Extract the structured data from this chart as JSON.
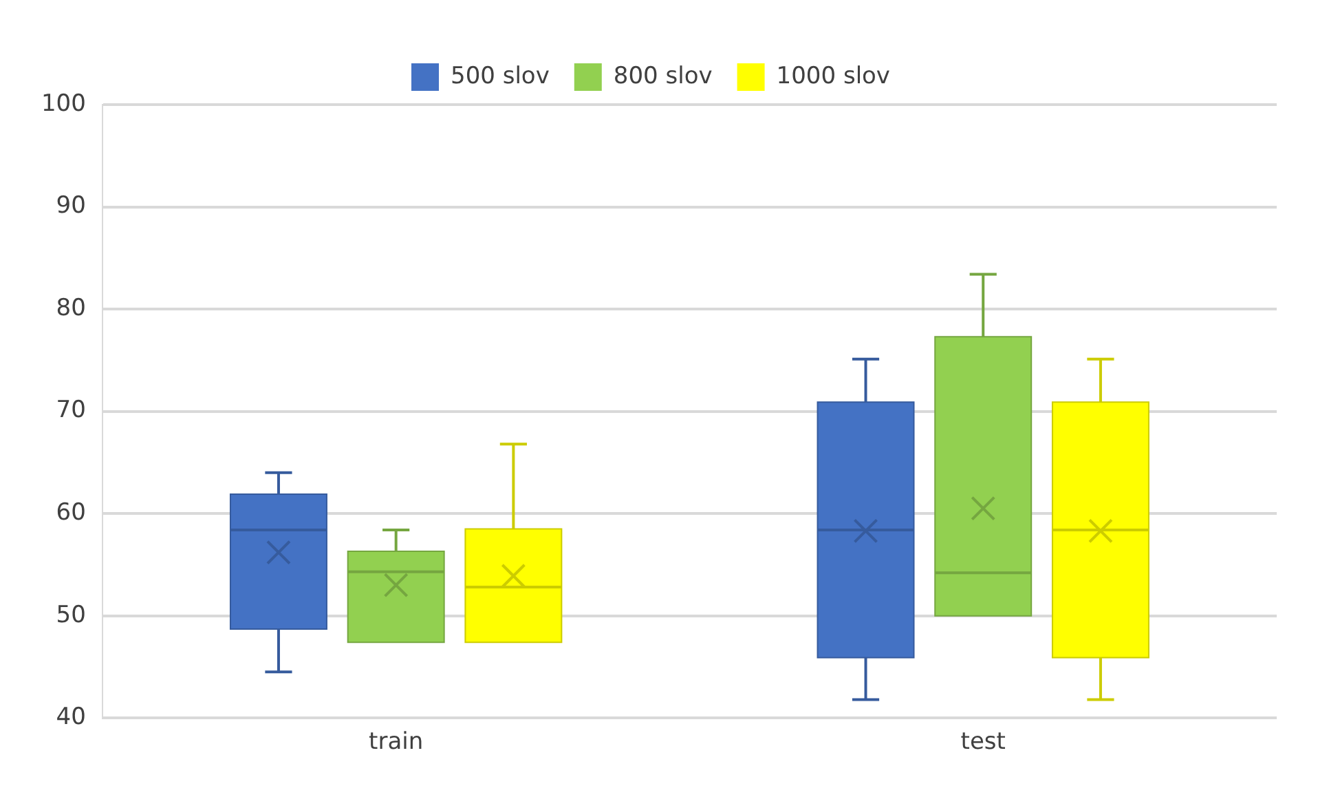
{
  "chart_data": {
    "type": "box",
    "categories": [
      "train",
      "test"
    ],
    "ylim": [
      40,
      100
    ],
    "yticks": [
      40,
      50,
      60,
      70,
      80,
      90,
      100
    ],
    "grid": "y",
    "legend": "top",
    "series": [
      {
        "name": "500 slov",
        "color": "#4472c4",
        "boxes": [
          {
            "low": 44.5,
            "q1": 48.7,
            "median": 58.4,
            "q3": 61.9,
            "high": 64.0,
            "mean": 56.2
          },
          {
            "low": 41.8,
            "q1": 45.9,
            "median": 58.4,
            "q3": 70.9,
            "high": 75.1,
            "mean": 58.3
          }
        ]
      },
      {
        "name": "800 slov",
        "color": "#92d050",
        "boxes": [
          {
            "low": 47.4,
            "q1": 47.4,
            "median": 54.3,
            "q3": 56.3,
            "high": 58.4,
            "mean": 53.0
          },
          {
            "low": 50.0,
            "q1": 50.0,
            "median": 54.2,
            "q3": 77.3,
            "high": 83.4,
            "mean": 60.5
          }
        ]
      },
      {
        "name": "1000 slov",
        "color": "#ffff00",
        "boxes": [
          {
            "low": 47.4,
            "q1": 47.4,
            "median": 52.8,
            "q3": 58.5,
            "high": 66.8,
            "mean": 53.9
          },
          {
            "low": 41.8,
            "q1": 45.9,
            "median": 58.4,
            "q3": 70.9,
            "high": 75.1,
            "mean": 58.3
          }
        ]
      }
    ]
  }
}
